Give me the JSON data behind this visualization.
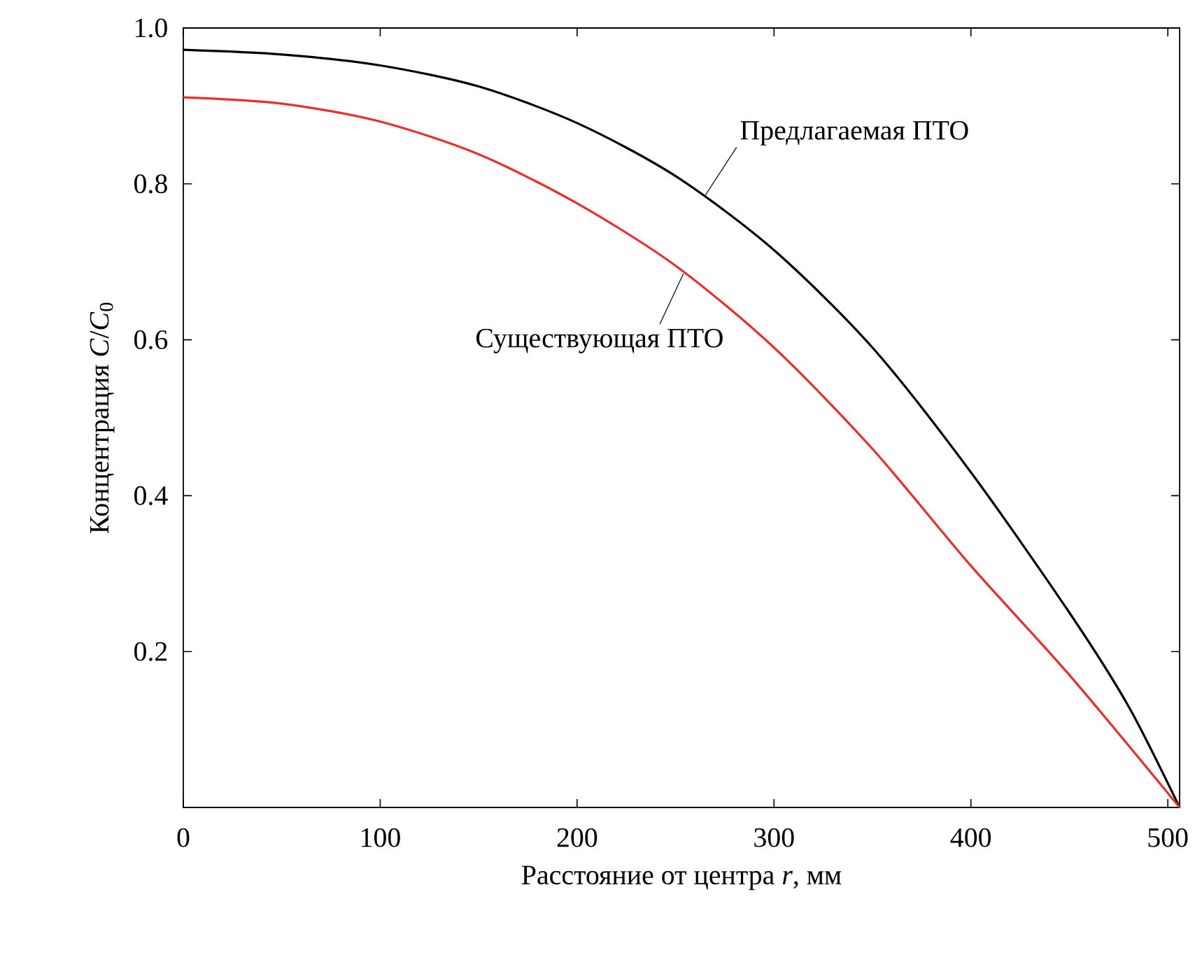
{
  "chart_data": {
    "type": "line",
    "xlabel": "Расстояние от центра *r*, мм",
    "ylabel": "Концентрация *C*/*C*$_{0}$",
    "xlim": [
      0,
      506
    ],
    "ylim": [
      0,
      1.0
    ],
    "xticks": [
      0,
      100,
      200,
      300,
      400,
      500
    ],
    "yticks": [
      {
        "value": 0.2,
        "label": "0.2"
      },
      {
        "value": 0.4,
        "label": "0.4"
      },
      {
        "value": 0.6,
        "label": "0.6"
      },
      {
        "value": 0.8,
        "label": "0.8"
      },
      {
        "value": 1.0,
        "label": "1.0"
      }
    ],
    "grid": false,
    "line_style": "solid",
    "series": [
      {
        "color": "#000000",
        "x": [
          0,
          50,
          100,
          150,
          200,
          250,
          300,
          350,
          400,
          450,
          480,
          506
        ],
        "values": [
          0.972,
          0.966,
          0.952,
          0.925,
          0.878,
          0.81,
          0.715,
          0.59,
          0.43,
          0.25,
          0.13,
          0
        ]
      },
      {
        "color": "#ee2c2c",
        "x": [
          0,
          50,
          100,
          150,
          200,
          250,
          300,
          350,
          400,
          450,
          506
        ],
        "values": [
          0.911,
          0.903,
          0.88,
          0.838,
          0.775,
          0.695,
          0.59,
          0.46,
          0.31,
          0.17,
          0
        ]
      }
    ],
    "annotations": [
      {
        "text": "Предлагаемая ПТО",
        "x": 265,
        "y": 0.785
      },
      {
        "text": "Существующая ПТО",
        "x": 254,
        "y": 0.685
      }
    ]
  }
}
